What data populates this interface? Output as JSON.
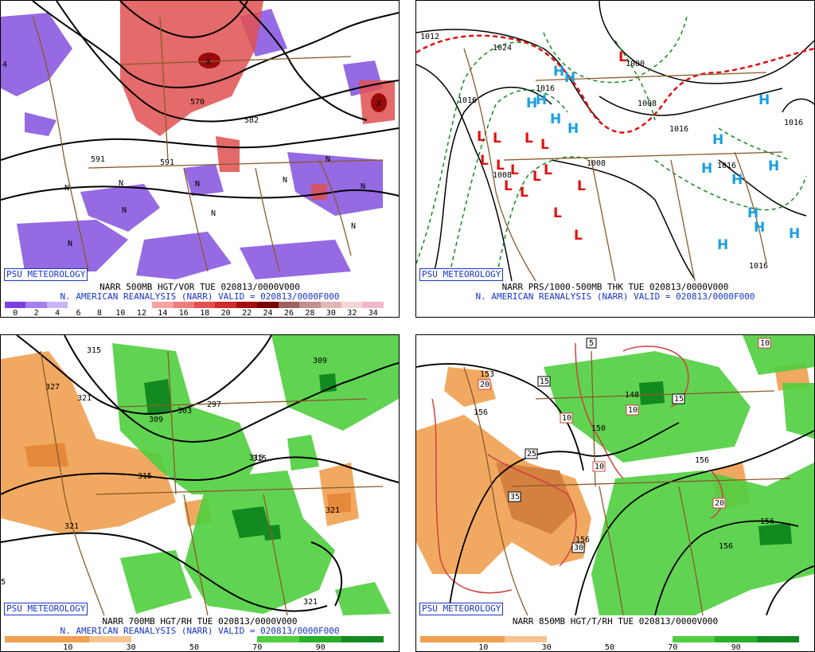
{
  "branding": "PSU METEOROLOGY",
  "panels": [
    {
      "title1": "NARR 500MB HGT/VOR TUE 020813/0000V000",
      "title2": "N. AMERICAN REANALYSIS (NARR) VALID = 020813/0000F000",
      "colorbar": {
        "colors": [
          "#7f3fe0",
          "#a47ff0",
          "#c9b6f6",
          "#ffffff",
          "#ffffff",
          "#ffffff",
          "#ffffff",
          "#f7a3a3",
          "#f07b7b",
          "#e64f4f",
          "#d12b2b",
          "#a80d0d",
          "#7a0000",
          "#a06060",
          "#c48f8f",
          "#e3b5b5",
          "#f5d5d5",
          "#f2b8c8"
        ],
        "labels": [
          "0",
          "2",
          "4",
          "6",
          "8",
          "10",
          "12",
          "14",
          "16",
          "18",
          "20",
          "22",
          "24",
          "26",
          "28",
          "30",
          "32",
          "34"
        ]
      },
      "contour_labels": [
        "570",
        "582",
        "591",
        "591",
        "4"
      ],
      "extrema": [
        "N",
        "N",
        "N",
        "N",
        "N",
        "N",
        "N",
        "N",
        "N",
        "N",
        "X",
        "X"
      ]
    },
    {
      "title1": "NARR PRS/1000-500MB THK TUE 020813/0000V000",
      "title2": "N. AMERICAN REANALYSIS (NARR) VALID = 020813/0000F000",
      "contour_labels": [
        "1012",
        "1024",
        "1016",
        "1016",
        "1016",
        "1016",
        "1008",
        "1008",
        "1016",
        "1016",
        "1000",
        "1008"
      ],
      "highs": [
        "H",
        "H",
        "H",
        "H",
        "H",
        "H",
        "H",
        "H",
        "H",
        "H",
        "H",
        "H",
        "H",
        "H",
        "H"
      ],
      "lows": [
        "L",
        "L",
        "L",
        "L",
        "L",
        "L",
        "L",
        "L",
        "L",
        "L",
        "L",
        "L",
        "L",
        "L",
        "L"
      ]
    },
    {
      "title1": "NARR 700MB HGT/RH TUE 020813/0000V000",
      "title2": "N. AMERICAN REANALYSIS (NARR) VALID = 020813/0000F000",
      "colorbar": {
        "colors": [
          "#f0a050",
          "#f0a050",
          "#f7c490",
          "#ffffff",
          "#ffffff",
          "#ffffff",
          "#4fcf3f",
          "#27b02a",
          "#138a20"
        ],
        "labels": [
          "10",
          "30",
          "50",
          "70",
          "90"
        ]
      },
      "contour_labels": [
        "315",
        "327",
        "321",
        "309",
        "303",
        "297",
        "315",
        "315",
        "321",
        "321",
        "309",
        "315",
        "321",
        "5"
      ]
    },
    {
      "title1": "NARR 850MB HGT/T/RH TUE 020813/0000V000",
      "colorbar": {
        "colors": [
          "#f0a050",
          "#f0a050",
          "#f7c490",
          "#ffffff",
          "#ffffff",
          "#ffffff",
          "#4fcf3f",
          "#27b02a",
          "#138a20"
        ],
        "labels": [
          "10",
          "30",
          "50",
          "70",
          "90"
        ]
      },
      "contour_labels": [
        "153",
        "156",
        "150",
        "148",
        "156",
        "156",
        "156",
        "156"
      ],
      "temp_labels": [
        "20",
        "15",
        "10",
        "15",
        "25",
        "35",
        "30",
        "10",
        "20",
        "10",
        "10",
        "5",
        "10"
      ]
    }
  ]
}
